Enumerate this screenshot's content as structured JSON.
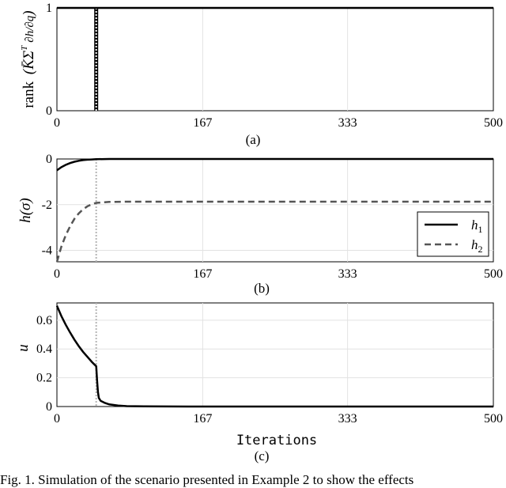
{
  "chart_data": [
    {
      "type": "line",
      "subfigure": "(a)",
      "ylabel": "rank(K̄ΣᵀPARTIAL)",
      "ylabel_parts": {
        "rank": "rank",
        "K": "K̄Σ",
        "T": "T",
        "num": "∂h",
        "den": "∂q"
      },
      "xlim": [
        0,
        500
      ],
      "ylim": [
        0,
        1
      ],
      "xticks": [
        "0",
        "167",
        "333",
        "500"
      ],
      "yticks": [
        "0",
        "1"
      ],
      "grid": true,
      "series": [
        {
          "style": "solid",
          "x": [
            0,
            44,
            44,
            44,
            500
          ],
          "y": [
            1,
            1,
            0,
            1,
            1
          ]
        }
      ],
      "markers": [
        {
          "x": 45,
          "style": "dotted"
        }
      ]
    },
    {
      "type": "line",
      "subfigure": "(b)",
      "ylabel": "h(σ)",
      "xlim": [
        0,
        500
      ],
      "ylim": [
        -4.5,
        0
      ],
      "xticks": [
        "0",
        "167",
        "333",
        "500"
      ],
      "yticks": [
        "-4",
        "-2",
        "0"
      ],
      "grid": true,
      "legend_position": "bottom-right",
      "series": [
        {
          "name": "h1",
          "label_main": "h",
          "label_sub": "1",
          "style": "solid",
          "x": [
            0,
            5,
            10,
            15,
            20,
            25,
            30,
            35,
            40,
            45,
            60,
            80,
            100,
            200,
            300,
            400,
            500
          ],
          "y": [
            -0.5,
            -0.36,
            -0.26,
            -0.18,
            -0.12,
            -0.08,
            -0.05,
            -0.03,
            -0.02,
            -0.01,
            0,
            0,
            0,
            0,
            0,
            0,
            0
          ]
        },
        {
          "name": "h2",
          "label_main": "h",
          "label_sub": "2",
          "style": "dashed",
          "x": [
            0,
            5,
            10,
            15,
            20,
            25,
            30,
            35,
            40,
            45,
            60,
            80,
            100,
            200,
            300,
            400,
            500
          ],
          "y": [
            -4.5,
            -3.85,
            -3.35,
            -2.95,
            -2.62,
            -2.38,
            -2.2,
            -2.07,
            -1.98,
            -1.92,
            -1.88,
            -1.87,
            -1.87,
            -1.87,
            -1.87,
            -1.87,
            -1.87
          ]
        }
      ],
      "markers": [
        {
          "x": 45,
          "style": "dotted"
        }
      ]
    },
    {
      "type": "line",
      "subfigure": "(c)",
      "ylabel": "u",
      "xlabel": "Iterations",
      "xlim": [
        0,
        500
      ],
      "ylim": [
        0,
        0.72
      ],
      "xticks": [
        "0",
        "167",
        "333",
        "500"
      ],
      "yticks": [
        "0",
        "0.2",
        "0.4",
        "0.6"
      ],
      "grid": true,
      "series": [
        {
          "style": "solid",
          "x": [
            0,
            5,
            10,
            15,
            20,
            25,
            30,
            35,
            40,
            45,
            46,
            47,
            48,
            50,
            55,
            60,
            70,
            80,
            100,
            150,
            200,
            300,
            400,
            500
          ],
          "y": [
            0.7,
            0.63,
            0.57,
            0.515,
            0.465,
            0.42,
            0.38,
            0.345,
            0.31,
            0.28,
            0.18,
            0.1,
            0.06,
            0.04,
            0.025,
            0.015,
            0.007,
            0.003,
            0.001,
            0,
            0,
            0,
            0,
            0
          ]
        }
      ],
      "markers": [
        {
          "x": 45,
          "style": "dotted"
        }
      ]
    }
  ],
  "caption": "Fig. 1.  Simulation of the scenario presented in Example 2 to show the effects"
}
